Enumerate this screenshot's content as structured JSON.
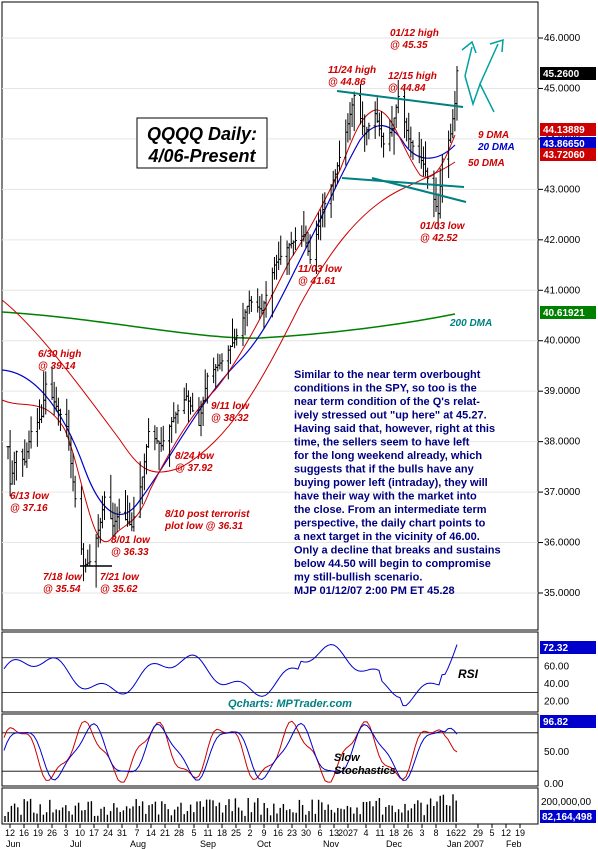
{
  "chart_data": [
    {
      "type": "candlestick",
      "title": "QQQQ Daily:",
      "subtitle": "4/06-Present",
      "ylim": [
        34.5,
        46.4
      ],
      "yticks": [
        "35.0000",
        "36.0000",
        "37.0000",
        "38.0000",
        "39.0000",
        "40.0000",
        "41.0000",
        "42.0000",
        "43.0000",
        "44.0000",
        "45.0000",
        "46.0000"
      ],
      "price_labels": [
        {
          "text": "45.2600",
          "value": 45.26,
          "color": "#000000"
        },
        {
          "text": "44.13889",
          "value": 44.13889,
          "color": "#cc0000"
        },
        {
          "text": "43.86650",
          "value": 43.8665,
          "color": "#0000cc"
        },
        {
          "text": "43.72060",
          "value": 43.7206,
          "color": "#cc0000"
        },
        {
          "text": "40.61921",
          "value": 40.61921,
          "color": "#008000"
        }
      ],
      "ma_labels": [
        {
          "text": "9 DMA",
          "color": "#cc0000"
        },
        {
          "text": "20 DMA",
          "color": "#0000cc"
        },
        {
          "text": "50 DMA",
          "color": "#cc0000"
        },
        {
          "text": "200 DMA",
          "color": "#008080"
        }
      ],
      "annotations": [
        {
          "lines": [
            "01/12 high",
            "@ 45.35"
          ]
        },
        {
          "lines": [
            "11/24 high",
            "@ 44.86"
          ]
        },
        {
          "lines": [
            "12/15 high",
            "@ 44.84"
          ]
        },
        {
          "lines": [
            "01/03 low",
            "@ 42.52"
          ]
        },
        {
          "lines": [
            "11/03 low",
            "@ 41.61"
          ]
        },
        {
          "lines": [
            "6/30 high",
            "@ 39.14"
          ]
        },
        {
          "lines": [
            "9/11 low",
            "@ 38.32"
          ]
        },
        {
          "lines": [
            "8/24 low",
            "@ 37.92"
          ]
        },
        {
          "lines": [
            "6/13 low",
            "@ 37.16"
          ]
        },
        {
          "lines": [
            "8/10 post terrorist",
            "plot low @ 36.31"
          ]
        },
        {
          "lines": [
            "8/01 low",
            "@ 36.33"
          ]
        },
        {
          "lines": [
            "7/18 low",
            "@ 35.54"
          ]
        },
        {
          "lines": [
            "7/21 low",
            "@ 35.62"
          ]
        }
      ],
      "commentary": [
        "Similar to the near term overbought",
        "conditions in the SPY, so too is the",
        "near term condition of the Q's relat-",
        "ively stressed out \"up here\" at 45.27.",
        "Having said that, however, right at this",
        "time, the sellers seem to have left",
        "for the long weekend already, which",
        "suggests that if the bulls have any",
        "buying power left (intraday), they will",
        "have their way with the market into",
        "the close. From an intermediate term",
        "perspective, the daily chart points to",
        "a next target in the vicinity of 46.00.",
        "Only a decline that breaks and sustains",
        "below 44.50 will begin to compromise",
        "my still-bullish scenario.",
        "MJP 01/12/07 2:00 PM ET  45.28"
      ],
      "price_path": [
        [
          "2006-06-12",
          37.9
        ],
        [
          "2006-06-13",
          37.16
        ],
        [
          "2006-06-16",
          37.8
        ],
        [
          "2006-06-20",
          37.6
        ],
        [
          "2006-06-23",
          38.2
        ],
        [
          "2006-06-28",
          38.5
        ],
        [
          "2006-06-30",
          39.14
        ],
        [
          "2006-07-05",
          38.7
        ],
        [
          "2006-07-10",
          38.3
        ],
        [
          "2006-07-13",
          37.2
        ],
        [
          "2006-07-18",
          35.54
        ],
        [
          "2006-07-21",
          35.62
        ],
        [
          "2006-07-26",
          36.4
        ],
        [
          "2006-07-28",
          36.9
        ],
        [
          "2006-08-01",
          36.33
        ],
        [
          "2006-08-04",
          36.6
        ],
        [
          "2006-08-10",
          36.31
        ],
        [
          "2006-08-15",
          37.3
        ],
        [
          "2006-08-18",
          38.2
        ],
        [
          "2006-08-24",
          37.92
        ],
        [
          "2006-08-29",
          38.4
        ],
        [
          "2006-09-05",
          38.9
        ],
        [
          "2006-09-11",
          38.32
        ],
        [
          "2006-09-15",
          39.3
        ],
        [
          "2006-09-22",
          39.6
        ],
        [
          "2006-09-29",
          40.1
        ],
        [
          "2006-10-05",
          40.8
        ],
        [
          "2006-10-11",
          40.6
        ],
        [
          "2006-10-17",
          41.5
        ],
        [
          "2006-10-24",
          41.9
        ],
        [
          "2006-10-31",
          42.1
        ],
        [
          "2006-11-03",
          41.61
        ],
        [
          "2006-11-09",
          42.6
        ],
        [
          "2006-11-15",
          43.3
        ],
        [
          "2006-11-21",
          44.3
        ],
        [
          "2006-11-24",
          44.86
        ],
        [
          "2006-11-29",
          44.1
        ],
        [
          "2006-12-04",
          44.5
        ],
        [
          "2006-12-08",
          43.9
        ],
        [
          "2006-12-12",
          44.2
        ],
        [
          "2006-12-15",
          44.84
        ],
        [
          "2006-12-20",
          44.0
        ],
        [
          "2006-12-27",
          43.5
        ],
        [
          "2007-01-03",
          42.52
        ],
        [
          "2007-01-05",
          43.6
        ],
        [
          "2007-01-09",
          44.1
        ],
        [
          "2007-01-11",
          44.7
        ],
        [
          "2007-01-12",
          45.35
        ]
      ],
      "xticks": [
        "12",
        "16",
        "19",
        "26",
        "3",
        "10",
        "17",
        "24",
        "31",
        "7",
        "14",
        "21",
        "28",
        "5",
        "11",
        "18",
        "25",
        "2",
        "9",
        "16",
        "23",
        "30",
        "6",
        "13",
        "2027",
        "4",
        "11",
        "18",
        "26",
        "3",
        "8",
        "1622",
        "29",
        "5",
        "12",
        "19"
      ],
      "month_labels": [
        "Jun",
        "Jul",
        "Aug",
        "Sep",
        "Oct",
        "Nov",
        "Dec",
        "Jan 2007",
        "Feb"
      ],
      "watermark": "Qcharts: MPTrader.com"
    },
    {
      "type": "line",
      "name": "RSI",
      "yticks": [
        "80.00",
        "60.00",
        "40.00",
        "20.00"
      ],
      "last_value_label": "72.32",
      "label": "RSI"
    },
    {
      "type": "line",
      "name": "Slow Stochastics",
      "yticks": [
        "100.00",
        "50.00",
        "0.00"
      ],
      "last_value_label": "96.82",
      "label_lines": [
        "Slow",
        "Stochastics"
      ]
    },
    {
      "type": "bar",
      "name": "Volume",
      "yticks": [
        "200,000,00"
      ],
      "last_value_label": "82,164,498"
    }
  ]
}
